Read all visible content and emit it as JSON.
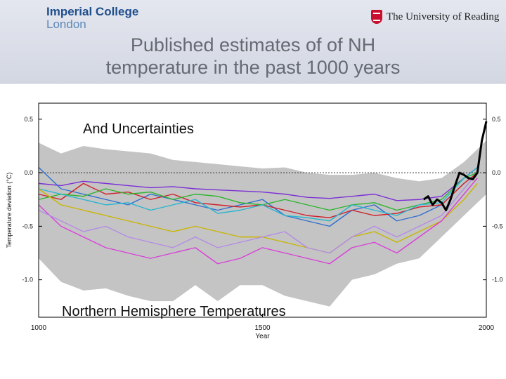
{
  "header": {
    "logo_left_line1": "Imperial College",
    "logo_left_line2": "London",
    "logo_right": "The University of Reading",
    "title_line1": "Published estimates of of NH",
    "title_line2": "temperature in the past 1000 years"
  },
  "colors": {
    "uncertainty_band": "#c4c4c4",
    "instrumental": "#000000",
    "axis": "#000000",
    "zero_line": "#333333"
  },
  "chart_data": {
    "type": "line",
    "title": "And Uncertainties",
    "subtitle": "Northern Hemisphere Temperatures",
    "xlabel": "Year",
    "ylabel": "Temperature deviation (°C)",
    "xlim": [
      1000,
      2000
    ],
    "ylim": [
      -1.35,
      0.65
    ],
    "x_ticks": [
      1000,
      1500,
      2000
    ],
    "y_ticks": [
      -1.0,
      -0.5,
      0.0,
      0.5
    ],
    "y_tick_labels": [
      "-1.0",
      "-0.5",
      "0.0",
      "0.5"
    ],
    "x_tick_labels": [
      "1000",
      "1500",
      "2000"
    ],
    "grid": false,
    "zero_reference_line": true,
    "uncertainty_band": {
      "x": [
        1000,
        1050,
        1100,
        1150,
        1200,
        1250,
        1300,
        1350,
        1400,
        1450,
        1500,
        1550,
        1600,
        1650,
        1700,
        1750,
        1800,
        1850,
        1900,
        1950,
        2000
      ],
      "upper": [
        0.28,
        0.18,
        0.25,
        0.22,
        0.2,
        0.18,
        0.12,
        0.1,
        0.08,
        0.06,
        0.04,
        0.05,
        0.0,
        -0.02,
        -0.02,
        0.0,
        -0.05,
        -0.08,
        -0.05,
        0.1,
        0.3
      ],
      "lower": [
        -0.8,
        -1.02,
        -1.1,
        -1.08,
        -1.15,
        -1.2,
        -1.2,
        -1.05,
        -1.2,
        -1.05,
        -1.05,
        -1.15,
        -1.2,
        -1.25,
        -1.0,
        -0.95,
        -0.85,
        -0.8,
        -0.6,
        -0.4,
        -0.2
      ]
    },
    "series": [
      {
        "color": "#7b2fd6",
        "x": [
          1000,
          1050,
          1100,
          1150,
          1200,
          1250,
          1300,
          1350,
          1400,
          1450,
          1500,
          1550,
          1600,
          1650,
          1700,
          1750,
          1800,
          1850,
          1900,
          1950,
          1980
        ],
        "y": [
          -0.1,
          -0.12,
          -0.08,
          -0.1,
          -0.12,
          -0.14,
          -0.13,
          -0.15,
          -0.16,
          -0.17,
          -0.18,
          -0.2,
          -0.23,
          -0.24,
          -0.22,
          -0.2,
          -0.26,
          -0.25,
          -0.22,
          -0.05,
          0.05
        ]
      },
      {
        "color": "#2f6fd0",
        "x": [
          1000,
          1050,
          1100,
          1150,
          1200,
          1250,
          1300,
          1350,
          1400,
          1450,
          1500,
          1550,
          1600,
          1650,
          1700,
          1750,
          1800,
          1850,
          1900,
          1950,
          1980
        ],
        "y": [
          0.05,
          -0.15,
          -0.2,
          -0.25,
          -0.3,
          -0.2,
          -0.25,
          -0.3,
          -0.35,
          -0.3,
          -0.25,
          -0.4,
          -0.45,
          -0.5,
          -0.35,
          -0.3,
          -0.45,
          -0.4,
          -0.3,
          -0.1,
          0.0
        ]
      },
      {
        "color": "#d0202a",
        "x": [
          1000,
          1050,
          1100,
          1150,
          1200,
          1250,
          1300,
          1350,
          1400,
          1450,
          1500,
          1550,
          1600,
          1650,
          1700,
          1750,
          1800,
          1850,
          1900,
          1950,
          1980
        ],
        "y": [
          -0.2,
          -0.25,
          -0.1,
          -0.2,
          -0.18,
          -0.25,
          -0.2,
          -0.28,
          -0.3,
          -0.32,
          -0.3,
          -0.35,
          -0.4,
          -0.42,
          -0.35,
          -0.4,
          -0.38,
          -0.32,
          -0.3,
          -0.1,
          0.0
        ]
      },
      {
        "color": "#2db52d",
        "x": [
          1000,
          1050,
          1100,
          1150,
          1200,
          1250,
          1300,
          1350,
          1400,
          1450,
          1500,
          1550,
          1600,
          1650,
          1700,
          1750,
          1800,
          1850,
          1900,
          1950,
          1980
        ],
        "y": [
          -0.25,
          -0.2,
          -0.22,
          -0.15,
          -0.2,
          -0.18,
          -0.25,
          -0.2,
          -0.22,
          -0.28,
          -0.3,
          -0.25,
          -0.3,
          -0.35,
          -0.3,
          -0.28,
          -0.35,
          -0.3,
          -0.25,
          -0.05,
          0.0
        ]
      },
      {
        "color": "#27b5cf",
        "x": [
          1000,
          1050,
          1100,
          1150,
          1200,
          1250,
          1300,
          1350,
          1400,
          1450,
          1500,
          1550,
          1600,
          1650,
          1700,
          1750,
          1800,
          1850,
          1900,
          1950,
          1980
        ],
        "y": [
          -0.15,
          -0.2,
          -0.25,
          -0.3,
          -0.28,
          -0.35,
          -0.3,
          -0.25,
          -0.38,
          -0.35,
          -0.3,
          -0.4,
          -0.42,
          -0.45,
          -0.3,
          -0.35,
          -0.4,
          -0.3,
          -0.28,
          -0.05,
          0.05
        ]
      },
      {
        "color": "#c9b600",
        "x": [
          1000,
          1050,
          1100,
          1150,
          1200,
          1250,
          1300,
          1350,
          1400,
          1450,
          1500,
          1550,
          1600,
          1650,
          1700,
          1750,
          1800,
          1850,
          1900,
          1950,
          1980
        ],
        "y": [
          -0.15,
          -0.3,
          -0.35,
          -0.4,
          -0.45,
          -0.5,
          -0.55,
          -0.5,
          -0.55,
          -0.6,
          -0.6,
          -0.65,
          -0.7,
          -0.75,
          -0.6,
          -0.55,
          -0.65,
          -0.55,
          -0.45,
          -0.25,
          -0.1
        ]
      },
      {
        "color": "#d940d9",
        "x": [
          1000,
          1050,
          1100,
          1150,
          1200,
          1250,
          1300,
          1350,
          1400,
          1450,
          1500,
          1550,
          1600,
          1650,
          1700,
          1750,
          1800,
          1850,
          1900,
          1950,
          1980
        ],
        "y": [
          -0.3,
          -0.5,
          -0.6,
          -0.7,
          -0.75,
          -0.8,
          -0.75,
          -0.7,
          -0.85,
          -0.8,
          -0.7,
          -0.75,
          -0.8,
          -0.85,
          -0.7,
          -0.65,
          -0.75,
          -0.6,
          -0.45,
          -0.2,
          -0.05
        ]
      },
      {
        "color": "#b48be6",
        "x": [
          1000,
          1050,
          1100,
          1150,
          1200,
          1250,
          1300,
          1350,
          1400,
          1450,
          1500,
          1550,
          1600,
          1650,
          1700,
          1750,
          1800,
          1850,
          1900,
          1950,
          1980
        ],
        "y": [
          -0.35,
          -0.45,
          -0.55,
          -0.5,
          -0.6,
          -0.65,
          -0.7,
          -0.6,
          -0.7,
          -0.65,
          -0.6,
          -0.55,
          -0.7,
          -0.75,
          -0.6,
          -0.5,
          -0.6,
          -0.5,
          -0.4,
          -0.15,
          0.0
        ]
      },
      {
        "color": "#000000",
        "x": [
          1860,
          1870,
          1880,
          1890,
          1900,
          1910,
          1920,
          1930,
          1940,
          1950,
          1960,
          1970,
          1980,
          1990,
          2000
        ],
        "y": [
          -0.25,
          -0.22,
          -0.3,
          -0.25,
          -0.28,
          -0.35,
          -0.25,
          -0.12,
          0.0,
          -0.02,
          -0.05,
          -0.06,
          0.0,
          0.3,
          0.48
        ]
      }
    ]
  }
}
